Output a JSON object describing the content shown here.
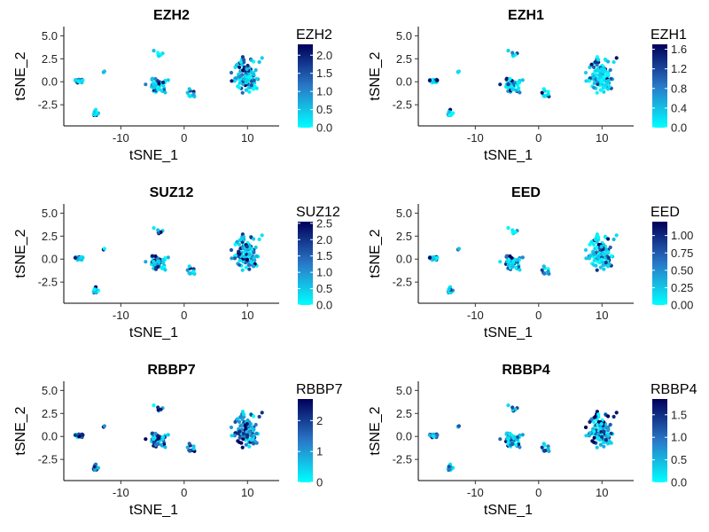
{
  "chart_data": [
    {
      "type": "scatter",
      "title": "EZH2",
      "xlabel": "tSNE_1",
      "ylabel": "tSNE_2",
      "legend_title": "EZH2",
      "legend_ticks": [
        "0.0",
        "0.5",
        "1.0",
        "1.5",
        "2.0"
      ],
      "legend_range": [
        0,
        2.3
      ],
      "xlim": [
        -19,
        15
      ],
      "ylim": [
        -4.8,
        6
      ],
      "xticks": [
        -10,
        0,
        10
      ],
      "yticks": [
        -2.5,
        0.0,
        2.5,
        5.0
      ],
      "ytick_labels": [
        "-2.5",
        "0.0",
        "2.5",
        "5.0"
      ],
      "xtick_labels": [
        "-10",
        "0",
        "10"
      ],
      "seed": 11,
      "high_frac": 0.35,
      "color_low": "#00FFFF",
      "color_high": "#00005A"
    },
    {
      "type": "scatter",
      "title": "EZH1",
      "xlabel": "tSNE_1",
      "ylabel": "tSNE_2",
      "legend_title": "EZH1",
      "legend_ticks": [
        "0.0",
        "0.4",
        "0.8",
        "1.2",
        "1.6"
      ],
      "legend_range": [
        0,
        1.7
      ],
      "xlim": [
        -19,
        15
      ],
      "ylim": [
        -4.8,
        6
      ],
      "xticks": [
        -10,
        0,
        10
      ],
      "yticks": [
        -2.5,
        0.0,
        2.5,
        5.0
      ],
      "ytick_labels": [
        "-2.5",
        "0.0",
        "2.5",
        "5.0"
      ],
      "xtick_labels": [
        "-10",
        "0",
        "10"
      ],
      "seed": 23,
      "high_frac": 0.2,
      "color_low": "#00FFFF",
      "color_high": "#00005A"
    },
    {
      "type": "scatter",
      "title": "SUZ12",
      "xlabel": "tSNE_1",
      "ylabel": "tSNE_2",
      "legend_title": "SUZ12",
      "legend_ticks": [
        "0.0",
        "0.5",
        "1.0",
        "1.5",
        "2.0",
        "2.5"
      ],
      "legend_range": [
        0,
        2.55
      ],
      "xlim": [
        -19,
        15
      ],
      "ylim": [
        -4.8,
        6
      ],
      "xticks": [
        -10,
        0,
        10
      ],
      "yticks": [
        -2.5,
        0.0,
        2.5,
        5.0
      ],
      "ytick_labels": [
        "-2.5",
        "0.0",
        "2.5",
        "5.0"
      ],
      "xtick_labels": [
        "-10",
        "0",
        "10"
      ],
      "seed": 37,
      "high_frac": 0.45,
      "color_low": "#00FFFF",
      "color_high": "#00005A"
    },
    {
      "type": "scatter",
      "title": "EED",
      "xlabel": "tSNE_1",
      "ylabel": "tSNE_2",
      "legend_title": "EED",
      "legend_ticks": [
        "0.00",
        "0.25",
        "0.50",
        "0.75",
        "1.00"
      ],
      "legend_range": [
        0,
        1.2
      ],
      "xlim": [
        -19,
        15
      ],
      "ylim": [
        -4.8,
        6
      ],
      "xticks": [
        -10,
        0,
        10
      ],
      "yticks": [
        -2.5,
        0.0,
        2.5,
        5.0
      ],
      "ytick_labels": [
        "-2.5",
        "0.0",
        "2.5",
        "5.0"
      ],
      "xtick_labels": [
        "-10",
        "0",
        "10"
      ],
      "seed": 41,
      "high_frac": 0.3,
      "color_low": "#00FFFF",
      "color_high": "#00005A"
    },
    {
      "type": "scatter",
      "title": "RBBP7",
      "xlabel": "tSNE_1",
      "ylabel": "tSNE_2",
      "legend_title": "RBBP7",
      "legend_ticks": [
        "0",
        "1",
        "2"
      ],
      "legend_range": [
        0,
        2.7
      ],
      "xlim": [
        -19,
        15
      ],
      "ylim": [
        -4.8,
        6
      ],
      "xticks": [
        -10,
        0,
        10
      ],
      "yticks": [
        -2.5,
        0.0,
        2.5,
        5.0
      ],
      "ytick_labels": [
        "-2.5",
        "0.0",
        "2.5",
        "5.0"
      ],
      "xtick_labels": [
        "-10",
        "0",
        "10"
      ],
      "seed": 53,
      "high_frac": 0.7,
      "color_low": "#00FFFF",
      "color_high": "#00005A"
    },
    {
      "type": "scatter",
      "title": "RBBP4",
      "xlabel": "tSNE_1",
      "ylabel": "tSNE_2",
      "legend_title": "RBBP4",
      "legend_ticks": [
        "0.0",
        "0.5",
        "1.0",
        "1.5"
      ],
      "legend_range": [
        0,
        1.85
      ],
      "xlim": [
        -19,
        15
      ],
      "ylim": [
        -4.8,
        6
      ],
      "xticks": [
        -10,
        0,
        10
      ],
      "yticks": [
        -2.5,
        0.0,
        2.5,
        5.0
      ],
      "ytick_labels": [
        "-2.5",
        "0.0",
        "2.5",
        "5.0"
      ],
      "xtick_labels": [
        "-10",
        "0",
        "10"
      ],
      "seed": 67,
      "high_frac": 0.5,
      "color_low": "#00FFFF",
      "color_high": "#00005A"
    }
  ]
}
